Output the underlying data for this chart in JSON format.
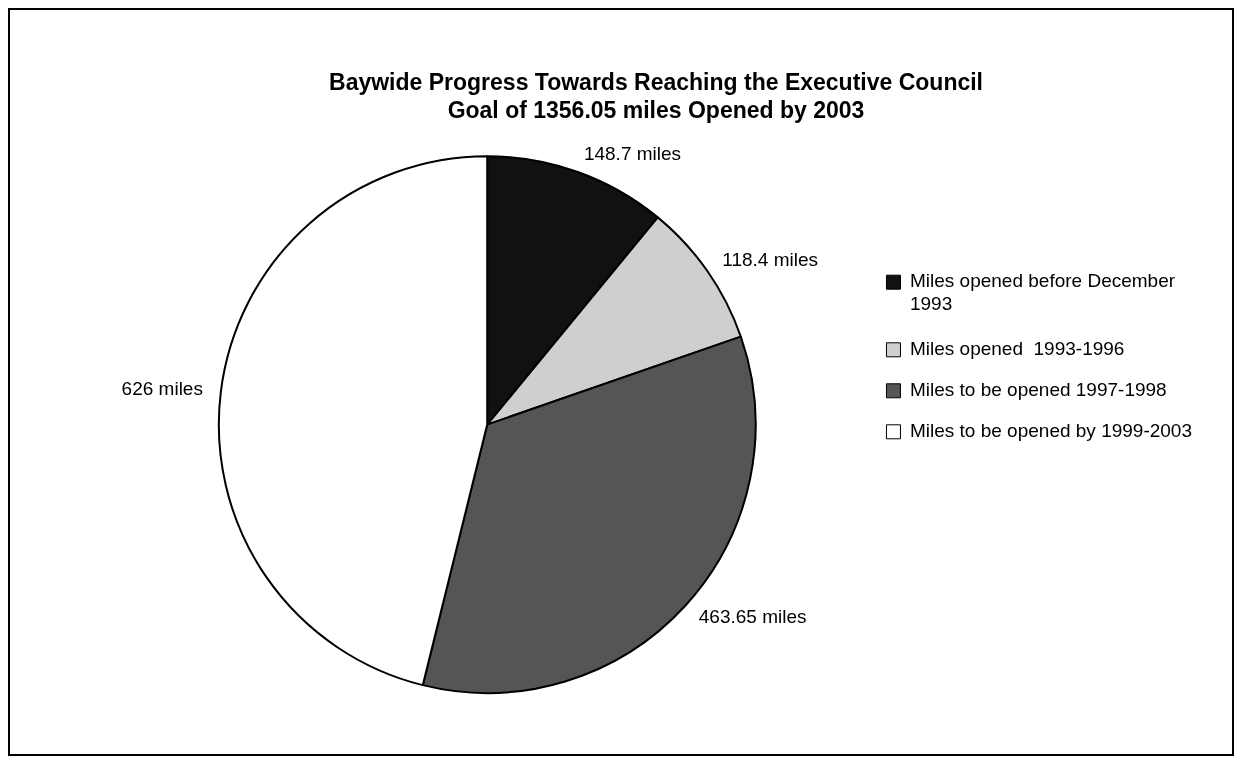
{
  "chart_data": {
    "type": "pie",
    "title": [
      "Baywide Progress Towards Reaching the Executive Council",
      "Goal of 1356.05 miles Opened by 2003"
    ],
    "categories": [
      [
        "Miles opened before December",
        "1993"
      ],
      "Miles opened  1993-1996",
      "Miles to be opened 1997-1998",
      "Miles to be opened by 1999-2003"
    ],
    "values": [
      148.7,
      118.4,
      463.65,
      626
    ],
    "value_labels": [
      "148.7 miles",
      "118.4 miles",
      "463.65 miles",
      "626 miles"
    ],
    "colors": [
      "#111111",
      "#cfcfcf",
      "#555555",
      "#ffffff"
    ],
    "legend": "right"
  }
}
